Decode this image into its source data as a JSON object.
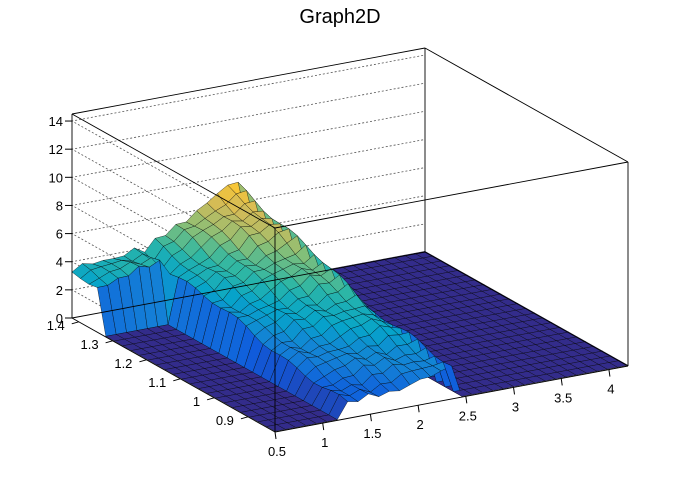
{
  "chart_data": {
    "type": "surface",
    "title": "Graph2D",
    "xlabel": "",
    "ylabel": "",
    "zlabel": "",
    "x_ticks": [
      "0.5",
      "1",
      "1.5",
      "2",
      "2.5",
      "3",
      "3.5",
      "4"
    ],
    "y_ticks": [
      "0.9",
      "1",
      "1.1",
      "1.2",
      "1.3",
      "1.4"
    ],
    "z_ticks": [
      "0",
      "2",
      "4",
      "6",
      "8",
      "10",
      "12",
      "14"
    ],
    "x_range": [
      0.5,
      4.2
    ],
    "y_range": [
      0.82,
      1.42
    ],
    "z_range": [
      0,
      14.5
    ],
    "grid": true,
    "legend": "none",
    "palette": [
      "#352a87",
      "#0f5cdd",
      "#1481d6",
      "#06a4ca",
      "#2eb7a4",
      "#87bf77",
      "#d1bb59",
      "#fec832",
      "#f9fb0e"
    ],
    "surface_description_points": [
      {
        "x": 0.5,
        "y": 1.42,
        "z": 3.6
      },
      {
        "x": 1.0,
        "y": 1.42,
        "z": 4.3
      },
      {
        "x": 1.5,
        "y": 1.42,
        "z": 6.2
      },
      {
        "x": 1.9,
        "y": 1.42,
        "z": 7.8
      },
      {
        "x": 2.1,
        "y": 1.42,
        "z": 7.9
      },
      {
        "x": 2.25,
        "y": 1.42,
        "z": 4.0
      },
      {
        "x": 2.4,
        "y": 1.42,
        "z": 0.1
      },
      {
        "x": 4.2,
        "y": 1.42,
        "z": 0.1
      },
      {
        "x": 1.2,
        "y": 0.82,
        "z": 0.1
      },
      {
        "x": 1.75,
        "y": 1.0,
        "z": 7.5
      }
    ]
  }
}
